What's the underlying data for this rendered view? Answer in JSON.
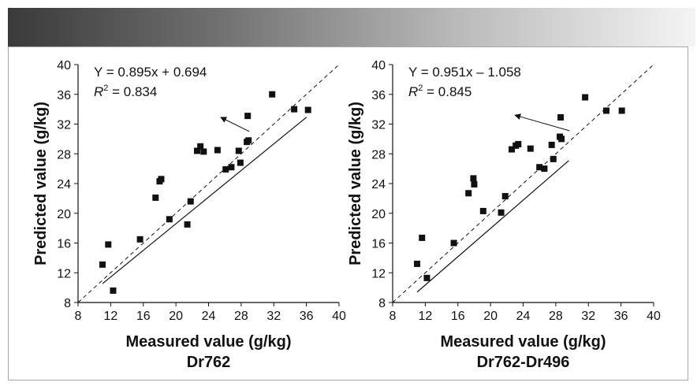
{
  "colors": {
    "ink": "#111111",
    "frame": "#a7a7a7"
  },
  "chart_data": [
    {
      "type": "scatter",
      "title": "Dr762",
      "xlabel": "Measured value (g/kg)",
      "ylabel": "Predicted value (g/kg)",
      "xlim": [
        8,
        40
      ],
      "ylim": [
        8,
        40
      ],
      "xticks": [
        "8",
        "12",
        "16",
        "20",
        "24",
        "28",
        "32",
        "36",
        "40"
      ],
      "yticks": [
        "8",
        "12",
        "16",
        "20",
        "24",
        "28",
        "32",
        "36",
        "40"
      ],
      "equation": "Y = 0.895x + 0.694",
      "r2_label": "R",
      "r2_value": " = 0.834",
      "fit": {
        "slope": 0.895,
        "intercept": 0.694,
        "x_range": [
          11,
          36
        ]
      },
      "one_to_one_line": true,
      "arrow": {
        "from": [
          29.0,
          31.0
        ],
        "to": [
          25.5,
          32.9
        ]
      },
      "points": [
        [
          11.0,
          13.1
        ],
        [
          11.7,
          15.8
        ],
        [
          12.3,
          9.6
        ],
        [
          15.6,
          16.5
        ],
        [
          17.5,
          22.1
        ],
        [
          18.0,
          24.3
        ],
        [
          18.2,
          24.6
        ],
        [
          19.2,
          19.2
        ],
        [
          21.4,
          18.5
        ],
        [
          21.8,
          21.6
        ],
        [
          22.6,
          28.4
        ],
        [
          23.0,
          29.0
        ],
        [
          23.4,
          28.3
        ],
        [
          25.1,
          28.5
        ],
        [
          26.1,
          25.9
        ],
        [
          26.8,
          26.2
        ],
        [
          27.7,
          28.4
        ],
        [
          27.9,
          26.8
        ],
        [
          28.7,
          29.6
        ],
        [
          28.9,
          29.8
        ],
        [
          28.8,
          33.1
        ],
        [
          31.8,
          36.0
        ],
        [
          34.5,
          34.0
        ],
        [
          36.2,
          33.9
        ]
      ]
    },
    {
      "type": "scatter",
      "title": "Dr762-Dr496",
      "xlabel": "Measured value (g/kg)",
      "ylabel": "Predicted value (g/kg)",
      "xlim": [
        8,
        40
      ],
      "ylim": [
        8,
        40
      ],
      "xticks": [
        "8",
        "12",
        "16",
        "20",
        "24",
        "28",
        "32",
        "36",
        "40"
      ],
      "yticks": [
        "8",
        "12",
        "16",
        "20",
        "24",
        "28",
        "32",
        "36",
        "40"
      ],
      "equation": "Y = 0.951x – 1.058",
      "r2_label": "R",
      "r2_value": " = 0.845",
      "fit": {
        "slope": 0.951,
        "intercept": -1.058,
        "x_range": [
          11,
          29.6
        ]
      },
      "one_to_one_line": true,
      "arrow": {
        "from": [
          29.7,
          31.1
        ],
        "to": [
          23.0,
          33.2
        ]
      },
      "points": [
        [
          11.0,
          13.2
        ],
        [
          11.6,
          16.7
        ],
        [
          12.2,
          11.3
        ],
        [
          15.5,
          16.0
        ],
        [
          17.3,
          22.7
        ],
        [
          17.9,
          24.7
        ],
        [
          18.0,
          23.9
        ],
        [
          19.1,
          20.3
        ],
        [
          21.3,
          20.1
        ],
        [
          21.8,
          22.3
        ],
        [
          22.6,
          28.6
        ],
        [
          23.1,
          29.1
        ],
        [
          23.4,
          29.3
        ],
        [
          24.9,
          28.7
        ],
        [
          26.0,
          26.2
        ],
        [
          26.6,
          26.0
        ],
        [
          27.5,
          29.2
        ],
        [
          27.7,
          27.3
        ],
        [
          28.5,
          30.3
        ],
        [
          28.7,
          30.0
        ],
        [
          28.6,
          32.9
        ],
        [
          31.6,
          35.6
        ],
        [
          34.2,
          33.8
        ],
        [
          36.1,
          33.8
        ]
      ]
    }
  ]
}
